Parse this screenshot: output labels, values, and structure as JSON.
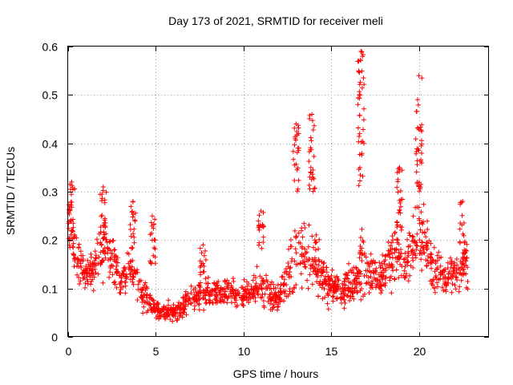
{
  "chart_data": {
    "type": "scatter",
    "title": "Day 173 of 2021, SRMTID for receiver meli",
    "xlabel": "GPS time / hours",
    "ylabel": "SRMTID / TECUs",
    "xlim": [
      0,
      24
    ],
    "ylim": [
      0,
      0.6
    ],
    "x_ticks": [
      0,
      5,
      10,
      15,
      20
    ],
    "x_tick_labels": [
      "0",
      "5",
      "10",
      "15",
      "20"
    ],
    "y_ticks": [
      0,
      0.1,
      0.2,
      0.3,
      0.4,
      0.5,
      0.6
    ],
    "y_tick_labels": [
      "0",
      "0.1",
      "0.2",
      "0.3",
      "0.4",
      "0.5",
      "0.6"
    ],
    "grid": true,
    "marker": "+",
    "color": "#ff0000",
    "series": [
      {
        "name": "SRMTID",
        "profile_x": [
          0.0,
          0.2,
          0.5,
          1.0,
          1.5,
          2.0,
          2.5,
          3.0,
          3.5,
          4.0,
          4.5,
          5.0,
          5.5,
          6.0,
          6.5,
          7.0,
          7.5,
          8.0,
          8.5,
          9.0,
          9.5,
          10.0,
          10.5,
          11.0,
          11.5,
          12.0,
          12.5,
          12.9,
          13.3,
          13.8,
          14.2,
          14.6,
          15.0,
          15.5,
          16.0,
          16.5,
          16.8,
          17.2,
          17.6,
          18.0,
          18.5,
          18.9,
          19.3,
          19.7,
          20.0,
          20.3,
          20.6,
          21.0,
          21.5,
          22.0,
          22.5,
          22.8
        ],
        "profile_typical": [
          0.21,
          0.22,
          0.15,
          0.13,
          0.14,
          0.19,
          0.17,
          0.11,
          0.14,
          0.1,
          0.08,
          0.06,
          0.055,
          0.05,
          0.06,
          0.075,
          0.09,
          0.09,
          0.095,
          0.095,
          0.09,
          0.085,
          0.095,
          0.11,
          0.085,
          0.08,
          0.12,
          0.17,
          0.18,
          0.16,
          0.15,
          0.12,
          0.1,
          0.1,
          0.1,
          0.11,
          0.15,
          0.13,
          0.12,
          0.14,
          0.16,
          0.17,
          0.15,
          0.19,
          0.22,
          0.2,
          0.16,
          0.14,
          0.12,
          0.13,
          0.14,
          0.15
        ],
        "profile_spread": [
          0.07,
          0.08,
          0.06,
          0.05,
          0.06,
          0.09,
          0.07,
          0.05,
          0.06,
          0.05,
          0.04,
          0.03,
          0.03,
          0.025,
          0.03,
          0.035,
          0.04,
          0.04,
          0.04,
          0.04,
          0.04,
          0.04,
          0.04,
          0.06,
          0.04,
          0.04,
          0.06,
          0.12,
          0.1,
          0.12,
          0.08,
          0.06,
          0.05,
          0.05,
          0.06,
          0.06,
          0.14,
          0.06,
          0.06,
          0.07,
          0.08,
          0.1,
          0.08,
          0.1,
          0.14,
          0.12,
          0.07,
          0.06,
          0.05,
          0.06,
          0.07,
          0.07
        ],
        "peaks": [
          {
            "x": 0.2,
            "ymin": 0.2,
            "ymax": 0.32
          },
          {
            "x": 2.0,
            "ymin": 0.2,
            "ymax": 0.31
          },
          {
            "x": 3.7,
            "ymin": 0.18,
            "ymax": 0.28
          },
          {
            "x": 4.8,
            "ymin": 0.15,
            "ymax": 0.25
          },
          {
            "x": 7.7,
            "ymin": 0.12,
            "ymax": 0.19
          },
          {
            "x": 11.0,
            "ymin": 0.18,
            "ymax": 0.26
          },
          {
            "x": 13.0,
            "ymin": 0.3,
            "ymax": 0.44
          },
          {
            "x": 13.9,
            "ymin": 0.3,
            "ymax": 0.46
          },
          {
            "x": 16.7,
            "ymin": 0.3,
            "ymax": 0.59
          },
          {
            "x": 18.9,
            "ymin": 0.22,
            "ymax": 0.35
          },
          {
            "x": 20.0,
            "ymin": 0.3,
            "ymax": 0.54
          },
          {
            "x": 22.5,
            "ymin": 0.15,
            "ymax": 0.28
          }
        ],
        "n_points": 1500
      }
    ]
  }
}
